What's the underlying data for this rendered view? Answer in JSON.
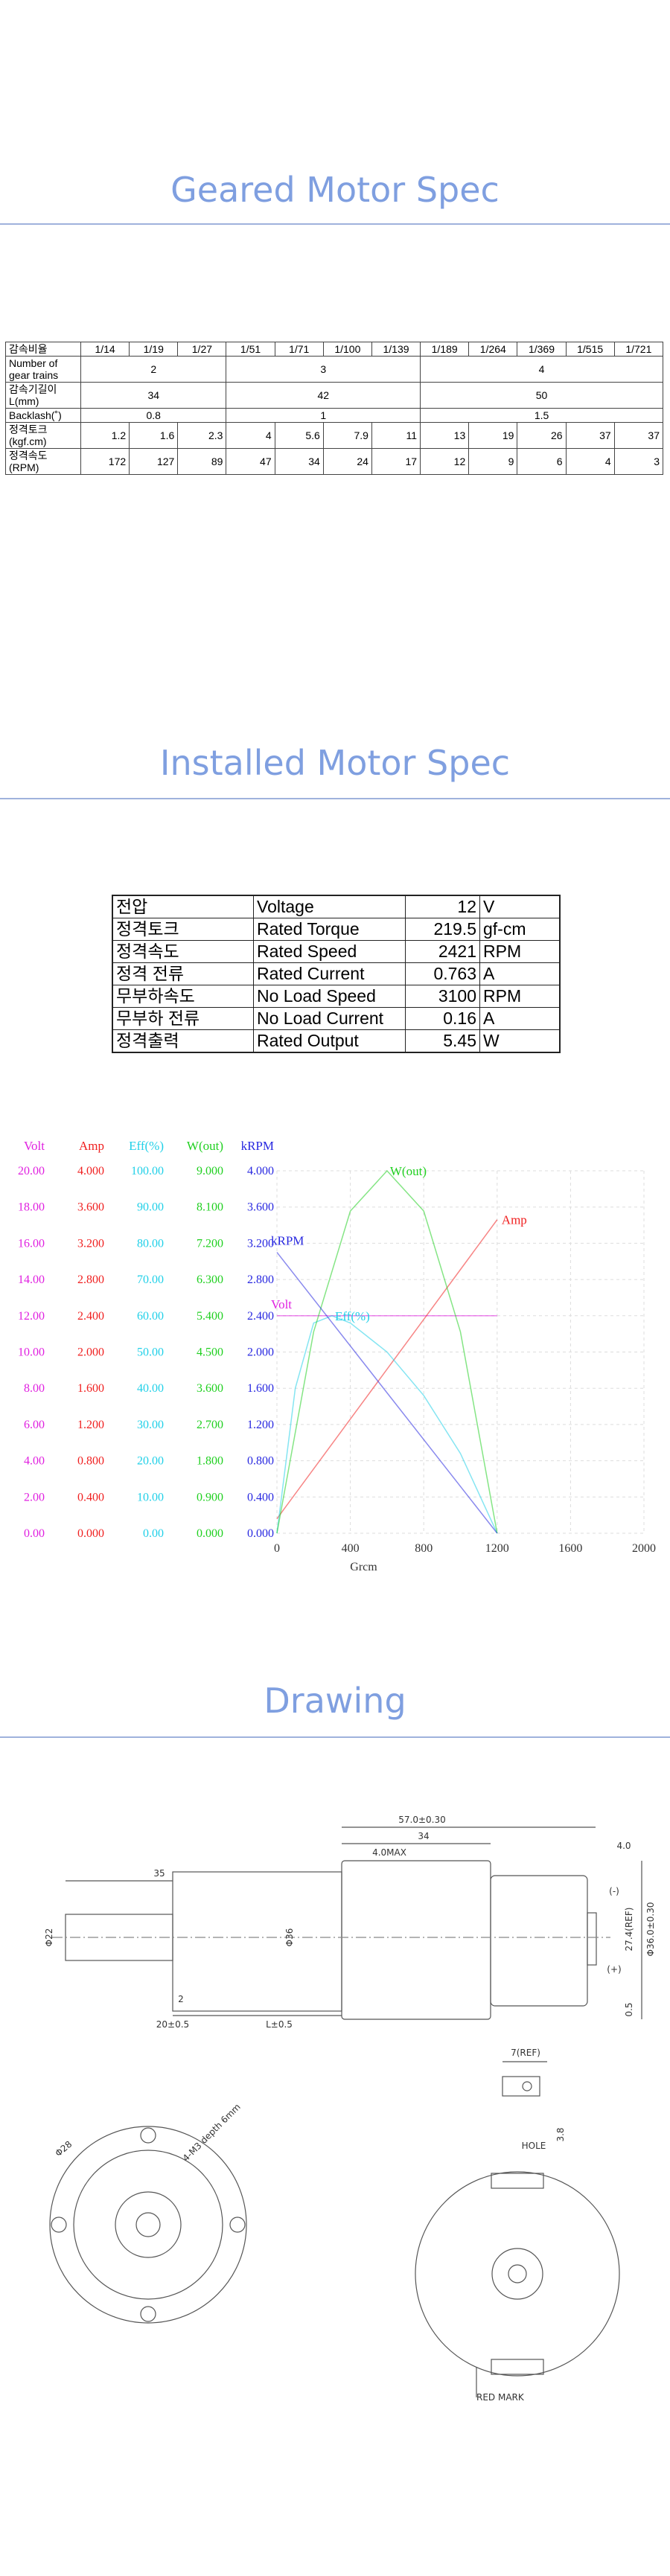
{
  "geared_spec": {
    "title": "Geared Motor Spec",
    "table": {
      "header": [
        "감속비율",
        "1/14",
        "1/19",
        "1/27",
        "1/51",
        "1/71",
        "1/100",
        "1/139",
        "1/189",
        "1/264",
        "1/369",
        "1/515",
        "1/721"
      ],
      "rows": [
        {
          "label": "Number of gear trains",
          "cells": [
            2,
            3,
            4
          ]
        },
        {
          "label": "감속기길이 L(mm)",
          "cells": [
            34,
            42,
            50
          ]
        },
        {
          "label": "Backlash(˚)",
          "cells": [
            0.8,
            1,
            1.5
          ]
        },
        {
          "label": "정격토크 (kgf.cm)",
          "cells": [
            1.2,
            1.6,
            2.3,
            4,
            5.6,
            7.9,
            11,
            13,
            19,
            26,
            37,
            37
          ]
        },
        {
          "label": "정격속도 (RPM)",
          "cells": [
            172,
            127,
            89,
            47,
            34,
            24,
            17,
            12,
            9,
            6,
            4,
            3
          ]
        }
      ]
    }
  },
  "installed_spec": {
    "title": "Installed Motor Spec",
    "table": {
      "rows": [
        [
          "전압",
          "Voltage",
          12,
          "V"
        ],
        [
          "정격토크",
          "Rated Torque",
          219.5,
          "gf-cm"
        ],
        [
          "정격속도",
          "Rated Speed",
          2421,
          "RPM"
        ],
        [
          "정격 전류",
          "Rated Current",
          0.763,
          "A"
        ],
        [
          "무부하속도",
          "No Load Speed",
          3100,
          "RPM"
        ],
        [
          "무부하 전류",
          "No Load Current",
          0.16,
          "A"
        ],
        [
          "정격출력",
          "Rated Output",
          5.45,
          "W"
        ]
      ]
    }
  },
  "chart_data": {
    "type": "line",
    "xlabel": "Grcm",
    "xlim": [
      0,
      2000
    ],
    "xticks": [
      0,
      400,
      800,
      1200,
      1600,
      2000
    ],
    "grid": true,
    "axes": [
      {
        "name": "Volt",
        "color": "#e020e0",
        "ylim": [
          0,
          20
        ],
        "yticks": [
          {
            "value": 0,
            "label": "0.00"
          },
          {
            "value": 2,
            "label": "2.00"
          },
          {
            "value": 4,
            "label": "4.00"
          },
          {
            "value": 6,
            "label": "6.00"
          },
          {
            "value": 8,
            "label": "8.00"
          },
          {
            "value": 10,
            "label": "10.00"
          },
          {
            "value": 12,
            "label": "12.00"
          },
          {
            "value": 14,
            "label": "14.00"
          },
          {
            "value": 16,
            "label": "16.00"
          },
          {
            "value": 18,
            "label": "18.00"
          },
          {
            "value": 20,
            "label": "20.00"
          }
        ],
        "x": [
          0,
          1200
        ],
        "values": [
          12,
          12
        ]
      },
      {
        "name": "Amp",
        "color": "#f02020",
        "ylim": [
          0,
          4
        ],
        "yticks": [
          {
            "value": 0,
            "label": "0.000"
          },
          {
            "value": 0.4,
            "label": "0.400"
          },
          {
            "value": 0.8,
            "label": "0.800"
          },
          {
            "value": 1.2,
            "label": "1.200"
          },
          {
            "value": 1.6,
            "label": "1.600"
          },
          {
            "value": 2,
            "label": "2.000"
          },
          {
            "value": 2.4,
            "label": "2.400"
          },
          {
            "value": 2.8,
            "label": "2.800"
          },
          {
            "value": 3.2,
            "label": "3.200"
          },
          {
            "value": 3.6,
            "label": "3.600"
          },
          {
            "value": 4,
            "label": "4.000"
          }
        ],
        "x": [
          0,
          1200
        ],
        "values": [
          0.16,
          3.46
        ]
      },
      {
        "name": "Eff(%)",
        "color": "#20d0e8",
        "ylim": [
          0,
          100
        ],
        "yticks": [
          {
            "value": 0,
            "label": "0.00"
          },
          {
            "value": 10,
            "label": "10.00"
          },
          {
            "value": 20,
            "label": "20.00"
          },
          {
            "value": 30,
            "label": "30.00"
          },
          {
            "value": 40,
            "label": "40.00"
          },
          {
            "value": 50,
            "label": "50.00"
          },
          {
            "value": 60,
            "label": "60.00"
          },
          {
            "value": 70,
            "label": "70.00"
          },
          {
            "value": 80,
            "label": "80.00"
          },
          {
            "value": 90,
            "label": "90.00"
          },
          {
            "value": 100,
            "label": "100.00"
          }
        ],
        "x": [
          0,
          100,
          200,
          300,
          400,
          600,
          800,
          1000,
          1200
        ],
        "values": [
          0,
          40,
          58,
          60,
          58,
          50,
          38,
          22,
          0
        ]
      },
      {
        "name": "W(out)",
        "color": "#20d020",
        "ylim": [
          0,
          9
        ],
        "yticks": [
          {
            "value": 0,
            "label": "0.000"
          },
          {
            "value": 0.9,
            "label": "0.900"
          },
          {
            "value": 1.8,
            "label": "1.800"
          },
          {
            "value": 2.7,
            "label": "2.700"
          },
          {
            "value": 3.6,
            "label": "3.600"
          },
          {
            "value": 4.5,
            "label": "4.500"
          },
          {
            "value": 5.4,
            "label": "5.400"
          },
          {
            "value": 6.3,
            "label": "6.300"
          },
          {
            "value": 7.2,
            "label": "7.200"
          },
          {
            "value": 8.1,
            "label": "8.100"
          },
          {
            "value": 9,
            "label": "9.000"
          }
        ],
        "x": [
          0,
          200,
          400,
          600,
          800,
          1000,
          1200
        ],
        "values": [
          0,
          5,
          8,
          9,
          8,
          5,
          0
        ]
      },
      {
        "name": "kRPM",
        "color": "#2828e0",
        "ylim": [
          0,
          4
        ],
        "yticks": [
          {
            "value": 0,
            "label": "0.000"
          },
          {
            "value": 0.4,
            "label": "0.400"
          },
          {
            "value": 0.8,
            "label": "0.800"
          },
          {
            "value": 1.2,
            "label": "1.200"
          },
          {
            "value": 1.6,
            "label": "1.600"
          },
          {
            "value": 2,
            "label": "2.000"
          },
          {
            "value": 2.4,
            "label": "2.400"
          },
          {
            "value": 2.8,
            "label": "2.800"
          },
          {
            "value": 3.2,
            "label": "3.200"
          },
          {
            "value": 3.6,
            "label": "3.600"
          },
          {
            "value": 4,
            "label": "4.000"
          }
        ],
        "x": [
          0,
          1200
        ],
        "values": [
          3.1,
          0
        ]
      }
    ]
  },
  "drawing": {
    "title": "Drawing",
    "labels": [
      "57.0±0.30",
      "34",
      "4.0MAX",
      "4.0",
      "35",
      "Φ22",
      "Φ36",
      "20±0.5",
      "L±0.5",
      "2",
      "27.4(REF)",
      "Φ36.0±0.30",
      "0.5",
      "(-)",
      "(+)",
      "7(REF)",
      "HOLE",
      "3.8",
      "Φ28",
      "4-M3 depth 6mm",
      "RED MARK"
    ]
  }
}
